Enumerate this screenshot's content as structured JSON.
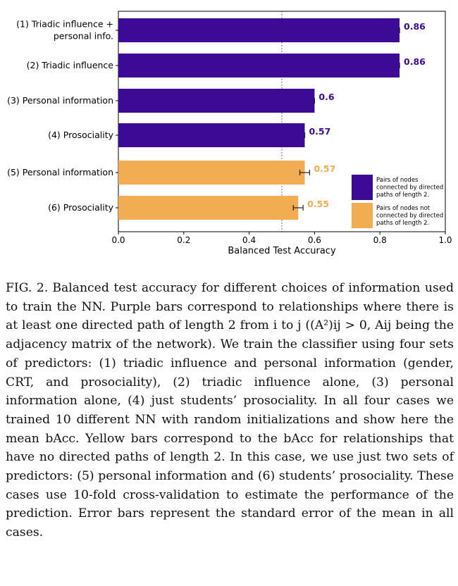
{
  "chart_data": {
    "type": "bar",
    "orientation": "horizontal",
    "categories": [
      [
        "(1) Triadic influence +",
        "personal info."
      ],
      [
        "(2) Triadic influence"
      ],
      [
        "(3) Personal information"
      ],
      [
        "(4) Prosociality"
      ],
      [
        "(5) Personal information"
      ],
      [
        "(6) Prosociality"
      ]
    ],
    "values": [
      0.86,
      0.86,
      0.6,
      0.57,
      0.57,
      0.55
    ],
    "value_labels": [
      "0.86",
      "0.86",
      "0.6",
      "0.57",
      "0.57",
      "0.55"
    ],
    "errors": [
      0.0,
      0.0,
      0.0,
      0.0,
      0.015,
      0.015
    ],
    "groups": [
      "purple",
      "purple",
      "purple",
      "purple",
      "yellow",
      "yellow"
    ],
    "xlabel": "Balanced Test Accuracy",
    "xlim": [
      0.0,
      1.0
    ],
    "xticks": [
      0.0,
      0.2,
      0.4,
      0.6,
      0.8,
      1.0
    ],
    "xtick_labels": [
      "0.0",
      "0.2",
      "0.4",
      "0.6",
      "0.8",
      "1.0"
    ],
    "reference_line": 0.5,
    "legend_position": "lower-right",
    "legend": [
      {
        "group": "purple",
        "lines": [
          "Pairs of nodes",
          "connected by directed",
          "paths of length 2."
        ]
      },
      {
        "group": "yellow",
        "lines": [
          "Pairs of nodes not",
          "connected by directed",
          "paths of length 2."
        ]
      }
    ],
    "colors": {
      "purple": "#3c0a94",
      "yellow": "#f2ac52",
      "axis": "#000000"
    }
  },
  "caption": {
    "label": "FIG. 2.",
    "text": "Balanced test accuracy for different choices of information used to train the NN. Purple bars correspond to relationships where there is at least one directed path of length 2 from i to j ((A²)ij > 0, Aij being the adjacency matrix of the network). We train the classifier using four sets of predictors: (1) triadic influence and personal information (gender, CRT, and prosociality), (2) triadic influence alone, (3) personal information alone, (4) just students’ prosociality. In all four cases we trained 10 different NN with random initializations and show here the mean bAcc. Yellow bars correspond to the bAcc for relationships that have no directed paths of length 2. In this case, we use just two sets of predictors: (5) personal information and (6) students’ prosociality. These cases use 10-fold cross-validation to estimate the performance of the prediction. Error bars represent the standard error of the mean in all cases."
  }
}
